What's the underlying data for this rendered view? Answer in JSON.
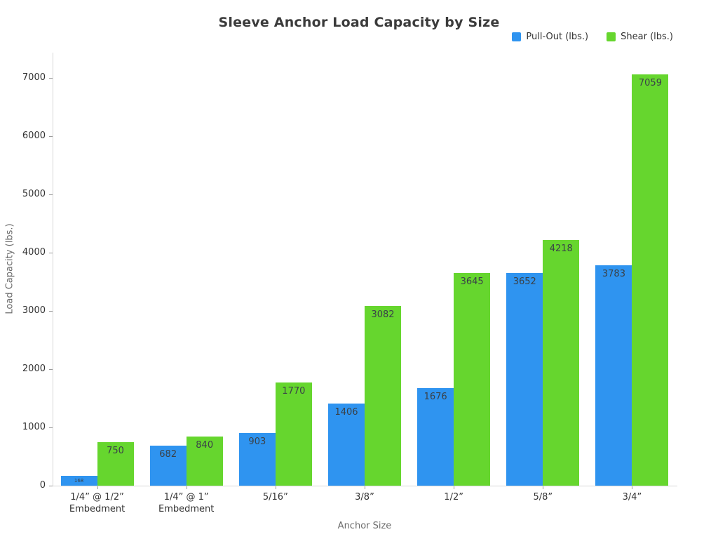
{
  "title": "Sleeve Anchor Load Capacity by Size",
  "legend": {
    "items": [
      {
        "label": "Pull-Out (lbs.)",
        "color": "#2f94f0"
      },
      {
        "label": "Shear (lbs.)",
        "color": "#66d62e"
      }
    ]
  },
  "chart_data": {
    "type": "bar",
    "title": "Sleeve Anchor Load Capacity by Size",
    "xlabel": "Anchor Size",
    "ylabel": "Load Capacity (lbs.)",
    "categories": [
      "1/4” @ 1/2”\nEmbedment",
      "1/4” @ 1”\nEmbedment",
      "5/16”",
      "3/8”",
      "1/2”",
      "5/8”",
      "3/4”"
    ],
    "series": [
      {
        "name": "Pull-Out (lbs.)",
        "color": "#2f94f0",
        "values": [
          168,
          682,
          903,
          1406,
          1676,
          3652,
          3783
        ]
      },
      {
        "name": "Shear (lbs.)",
        "color": "#66d62e",
        "values": [
          750,
          840,
          1770,
          3082,
          3645,
          4218,
          7059
        ]
      }
    ],
    "ylim": [
      0,
      7430
    ],
    "yticks": [
      0,
      1000,
      2000,
      3000,
      4000,
      5000,
      6000,
      7000
    ],
    "grid": false,
    "legend_position": "top-right",
    "value_labels": "inside-top"
  }
}
